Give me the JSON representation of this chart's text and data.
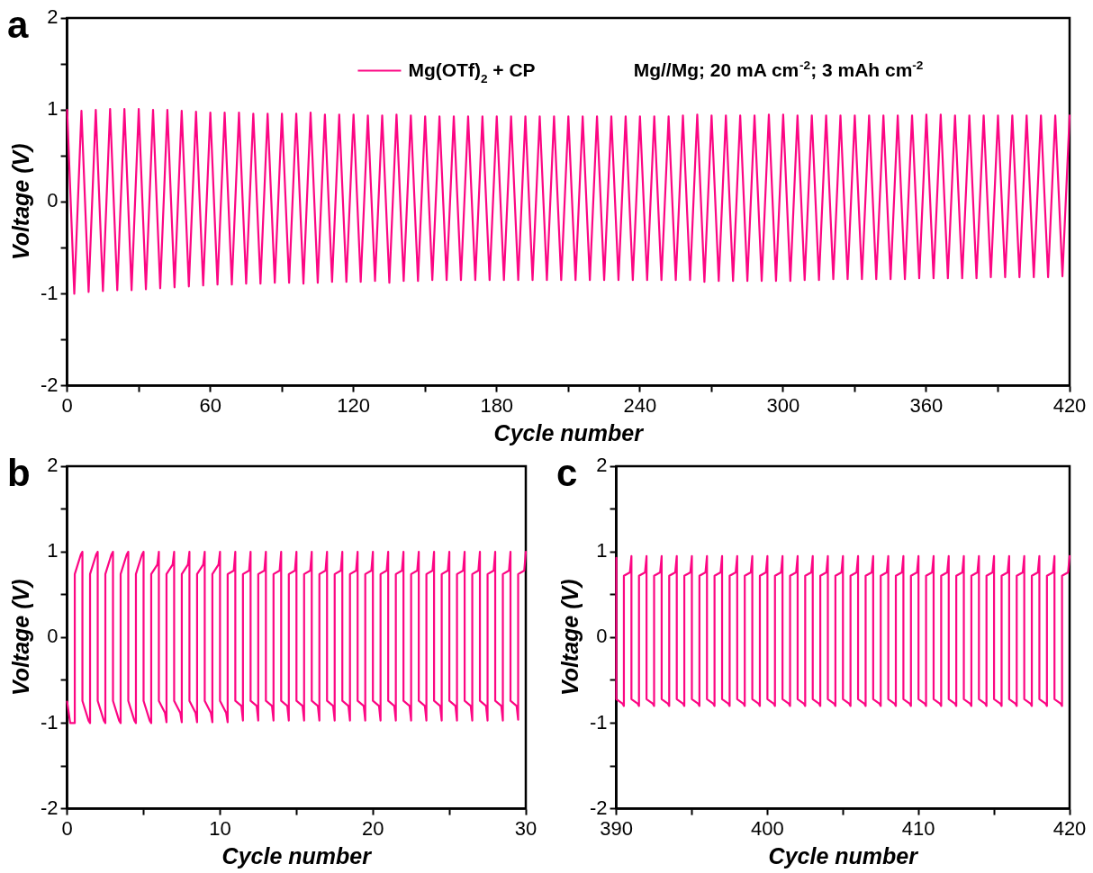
{
  "chart_data": [
    {
      "type": "line",
      "title": "a",
      "xlabel": "Cycle number",
      "ylabel": "Voltage (V)",
      "legend": "top",
      "annotations": [
        "Mg//Mg; 20 mA cm$^{-2}$; 3 mAh cm$^{-2}$"
      ],
      "xlim": [
        0,
        420
      ],
      "xticks": [
        0,
        {
          "value": 30,
          "label": null
        },
        60,
        {
          "value": 90,
          "label": null
        },
        120,
        {
          "value": 150,
          "label": null
        },
        180,
        {
          "value": 210,
          "label": null
        },
        240,
        {
          "value": 270,
          "label": null
        },
        300,
        {
          "value": 330,
          "label": null
        },
        360,
        {
          "value": 390,
          "label": null
        },
        420
      ],
      "ylim": [
        -2,
        2
      ],
      "yticks": [
        -2,
        {
          "value": -1.5,
          "label": null
        },
        -1,
        {
          "value": -0.5,
          "label": null
        },
        0,
        {
          "value": 0.5,
          "label": null
        },
        1,
        {
          "value": 1.5,
          "label": null
        },
        2
      ],
      "x": [
        0,
        3,
        6,
        9,
        12,
        15,
        18,
        21,
        24,
        27,
        30,
        33,
        36,
        39,
        42,
        45,
        48,
        51,
        54,
        57,
        60,
        63,
        66,
        69,
        72,
        75,
        78,
        81,
        84,
        87,
        90,
        93,
        96,
        99,
        102,
        105,
        108,
        111,
        114,
        117,
        120,
        123,
        126,
        129,
        132,
        135,
        138,
        141,
        144,
        147,
        150,
        153,
        156,
        159,
        162,
        165,
        168,
        171,
        174,
        177,
        180,
        183,
        186,
        189,
        192,
        195,
        198,
        201,
        204,
        207,
        210,
        213,
        216,
        219,
        222,
        225,
        228,
        231,
        234,
        237,
        240,
        243,
        246,
        249,
        252,
        255,
        258,
        261,
        264,
        267,
        270,
        273,
        276,
        279,
        282,
        285,
        288,
        291,
        294,
        297,
        300,
        303,
        306,
        309,
        312,
        315,
        318,
        321,
        324,
        327,
        330,
        333,
        336,
        339,
        342,
        345,
        348,
        351,
        354,
        357,
        360,
        363,
        366,
        369,
        372,
        375,
        378,
        381,
        384,
        387,
        390,
        393,
        396,
        399,
        402,
        405,
        408,
        411,
        414,
        417,
        420
      ],
      "series": [
        {
          "name": "Mg(OTf)$_{2}$ + CP",
          "color": "#fc0683",
          "values": [
            1.0,
            -1.0,
            0.99,
            -0.98,
            1.0,
            -0.97,
            1.01,
            -0.96,
            1.01,
            -0.96,
            1.01,
            -0.95,
            1.0,
            -0.94,
            1.0,
            -0.93,
            0.99,
            -0.92,
            0.98,
            -0.91,
            0.97,
            -0.9,
            0.97,
            -0.9,
            0.97,
            -0.89,
            0.96,
            -0.89,
            0.96,
            -0.88,
            0.96,
            -0.88,
            0.96,
            -0.89,
            0.97,
            -0.88,
            0.95,
            -0.87,
            0.95,
            -0.87,
            0.95,
            -0.87,
            0.94,
            -0.86,
            0.94,
            -0.88,
            0.95,
            -0.86,
            0.94,
            -0.86,
            0.93,
            -0.85,
            0.93,
            -0.85,
            0.93,
            -0.85,
            0.93,
            -0.85,
            0.93,
            -0.85,
            0.93,
            -0.85,
            0.93,
            -0.85,
            0.93,
            -0.85,
            0.93,
            -0.85,
            0.93,
            -0.85,
            0.93,
            -0.85,
            0.93,
            -0.85,
            0.93,
            -0.85,
            0.93,
            -0.85,
            0.93,
            -0.85,
            0.93,
            -0.85,
            0.93,
            -0.85,
            0.93,
            -0.85,
            0.94,
            -0.85,
            0.95,
            -0.87,
            0.94,
            -0.86,
            0.94,
            -0.86,
            0.94,
            -0.86,
            0.94,
            -0.86,
            0.95,
            -0.86,
            0.95,
            -0.86,
            0.94,
            -0.85,
            0.94,
            -0.85,
            0.94,
            -0.84,
            0.94,
            -0.84,
            0.94,
            -0.84,
            0.94,
            -0.84,
            0.94,
            -0.84,
            0.94,
            -0.84,
            0.94,
            -0.83,
            0.95,
            -0.83,
            0.95,
            -0.83,
            0.94,
            -0.83,
            0.94,
            -0.83,
            0.94,
            -0.82,
            0.94,
            -0.82,
            0.94,
            -0.82,
            0.94,
            -0.82,
            0.94,
            -0.82,
            0.94,
            -0.81,
            0.94
          ]
        }
      ]
    },
    {
      "type": "line",
      "title": "b",
      "xlabel": "Cycle number",
      "ylabel": "Voltage (V)",
      "xlim": [
        0,
        30
      ],
      "xticks": [
        0,
        {
          "value": 5,
          "label": null
        },
        10,
        {
          "value": 15,
          "label": null
        },
        20,
        {
          "value": 25,
          "label": null
        },
        30
      ],
      "ylim": [
        -2,
        2
      ],
      "yticks": [
        -2,
        {
          "value": -1.5,
          "label": null
        },
        -1,
        {
          "value": -0.5,
          "label": null
        },
        0,
        {
          "value": 0.5,
          "label": null
        },
        1,
        {
          "value": 1.5,
          "label": null
        },
        2
      ],
      "x": [
        0,
        0.2,
        0.5,
        0.5,
        0.9,
        1,
        1,
        1.4,
        1.5,
        1.5,
        1.9,
        2,
        2,
        2.4,
        2.5,
        2.5,
        2.9,
        3,
        3,
        3.4,
        3.5,
        3.5,
        3.9,
        4,
        4,
        4.4,
        4.5,
        4.5,
        4.9,
        5,
        5,
        5.4,
        5.5,
        5.5,
        5.9,
        6,
        6,
        6.4,
        6.5,
        6.5,
        6.9,
        7,
        7,
        7.4,
        7.5,
        7.5,
        7.9,
        8,
        8,
        8.4,
        8.5,
        8.5,
        8.9,
        9,
        9,
        9.4,
        9.5,
        9.5,
        9.9,
        10,
        10,
        10.4,
        10.5,
        10.5,
        10.9,
        11,
        11,
        11.4,
        11.5,
        11.5,
        11.9,
        12,
        12,
        12.4,
        12.5,
        12.5,
        12.9,
        13,
        13,
        13.4,
        13.5,
        13.5,
        13.9,
        14,
        14,
        14.4,
        14.5,
        14.5,
        14.9,
        15,
        15,
        15.4,
        15.5,
        15.5,
        15.9,
        16,
        16,
        16.4,
        16.5,
        16.5,
        16.9,
        17,
        17,
        17.4,
        17.5,
        17.5,
        17.9,
        18,
        18,
        18.4,
        18.5,
        18.5,
        18.9,
        19,
        19,
        19.4,
        19.5,
        19.5,
        19.9,
        20,
        20,
        20.4,
        20.5,
        20.5,
        20.9,
        21,
        21,
        21.4,
        21.5,
        21.5,
        21.9,
        22,
        22,
        22.4,
        22.5,
        22.5,
        22.9,
        23,
        23,
        23.4,
        23.5,
        23.5,
        23.9,
        24,
        24,
        24.4,
        24.5,
        24.5,
        24.9,
        25,
        25,
        25.4,
        25.5,
        25.5,
        25.9,
        26,
        26,
        26.4,
        26.5,
        26.5,
        26.9,
        27,
        27,
        27.4,
        27.5,
        27.5,
        27.9,
        28,
        28,
        28.4,
        28.5,
        28.5,
        28.9,
        29,
        29,
        29.4,
        29.5,
        29.5,
        29.9,
        30
      ],
      "series": [
        {
          "color": "#fc0683",
          "values": [
            -0.75,
            -1.0,
            -1.0,
            0.74,
            0.97,
            1.0,
            -0.74,
            -0.97,
            -1.0,
            0.74,
            0.97,
            1.0,
            -0.74,
            -0.97,
            -1.0,
            0.74,
            0.97,
            1.0,
            -0.74,
            -0.97,
            -1.0,
            0.74,
            0.97,
            1.0,
            -0.74,
            -0.97,
            -1.0,
            0.74,
            0.97,
            1.0,
            -0.74,
            -0.97,
            -1.0,
            0.74,
            0.85,
            1.0,
            -0.74,
            -0.88,
            -0.99,
            0.74,
            0.85,
            1.0,
            -0.74,
            -0.88,
            -0.99,
            0.74,
            0.85,
            1.0,
            -0.74,
            -0.88,
            -0.99,
            0.74,
            0.85,
            1.0,
            -0.74,
            -0.88,
            -0.99,
            0.74,
            0.85,
            1.0,
            -0.74,
            -0.88,
            -0.99,
            0.74,
            0.78,
            1.0,
            -0.74,
            -0.8,
            -0.97,
            0.74,
            0.78,
            1.0,
            -0.74,
            -0.8,
            -0.97,
            0.74,
            0.78,
            1.0,
            -0.74,
            -0.8,
            -0.97,
            0.74,
            0.78,
            1.0,
            -0.74,
            -0.8,
            -0.97,
            0.74,
            0.78,
            1.0,
            -0.74,
            -0.8,
            -0.97,
            0.74,
            0.78,
            1.0,
            -0.74,
            -0.8,
            -0.97,
            0.74,
            0.78,
            1.0,
            -0.74,
            -0.8,
            -0.97,
            0.74,
            0.78,
            1.0,
            -0.74,
            -0.8,
            -0.97,
            0.74,
            0.78,
            1.0,
            -0.74,
            -0.8,
            -0.97,
            0.74,
            0.78,
            1.0,
            -0.74,
            -0.8,
            -0.97,
            0.74,
            0.78,
            1.0,
            -0.74,
            -0.8,
            -0.97,
            0.74,
            0.78,
            1.0,
            -0.74,
            -0.8,
            -0.97,
            0.74,
            0.78,
            1.0,
            -0.74,
            -0.8,
            -0.97,
            0.74,
            0.78,
            1.0,
            -0.74,
            -0.8,
            -0.97,
            0.74,
            0.78,
            1.0,
            -0.74,
            -0.8,
            -0.97,
            0.74,
            0.78,
            1.0,
            -0.74,
            -0.8,
            -0.97,
            0.74,
            0.78,
            1.0,
            -0.74,
            -0.8,
            -0.97,
            0.74,
            0.78,
            1.0,
            -0.74,
            -0.8,
            -0.97,
            0.74,
            0.78,
            1.0,
            -0.74,
            -0.8,
            -0.96,
            0.74,
            0.78,
            1.0
          ]
        }
      ]
    },
    {
      "type": "line",
      "title": "c",
      "xlabel": "Cycle number",
      "ylabel": "Voltage (V)",
      "xlim": [
        390,
        420
      ],
      "xticks": [
        390,
        {
          "value": 395,
          "label": null
        },
        400,
        {
          "value": 405,
          "label": null
        },
        410,
        {
          "value": 415,
          "label": null
        },
        420
      ],
      "ylim": [
        -2,
        2
      ],
      "yticks": [
        -2,
        {
          "value": -1.5,
          "label": null
        },
        -1,
        {
          "value": -0.5,
          "label": null
        },
        0,
        {
          "value": 0.5,
          "label": null
        },
        1,
        {
          "value": 1.5,
          "label": null
        },
        2
      ],
      "x": [
        390,
        390,
        390.4,
        390.5,
        390.5,
        390.9,
        391,
        391,
        391.4,
        391.5,
        391.5,
        391.9,
        392,
        392,
        392.4,
        392.5,
        392.5,
        392.9,
        393,
        393,
        393.4,
        393.5,
        393.5,
        393.9,
        394,
        394,
        394.4,
        394.5,
        394.5,
        394.9,
        395,
        395,
        395.4,
        395.5,
        395.5,
        395.9,
        396,
        396,
        396.4,
        396.5,
        396.5,
        396.9,
        397,
        397,
        397.4,
        397.5,
        397.5,
        397.9,
        398,
        398,
        398.4,
        398.5,
        398.5,
        398.9,
        399,
        399,
        399.4,
        399.5,
        399.5,
        399.9,
        400,
        400,
        400.4,
        400.5,
        400.5,
        400.9,
        401,
        401,
        401.4,
        401.5,
        401.5,
        401.9,
        402,
        402,
        402.4,
        402.5,
        402.5,
        402.9,
        403,
        403,
        403.4,
        403.5,
        403.5,
        403.9,
        404,
        404,
        404.4,
        404.5,
        404.5,
        404.9,
        405,
        405,
        405.4,
        405.5,
        405.5,
        405.9,
        406,
        406,
        406.4,
        406.5,
        406.5,
        406.9,
        407,
        407,
        407.4,
        407.5,
        407.5,
        407.9,
        408,
        408,
        408.4,
        408.5,
        408.5,
        408.9,
        409,
        409,
        409.4,
        409.5,
        409.5,
        409.9,
        410,
        410,
        410.4,
        410.5,
        410.5,
        410.9,
        411,
        411,
        411.4,
        411.5,
        411.5,
        411.9,
        412,
        412,
        412.4,
        412.5,
        412.5,
        412.9,
        413,
        413,
        413.4,
        413.5,
        413.5,
        413.9,
        414,
        414,
        414.4,
        414.5,
        414.5,
        414.9,
        415,
        415,
        415.4,
        415.5,
        415.5,
        415.9,
        416,
        416,
        416.4,
        416.5,
        416.5,
        416.9,
        417,
        417,
        417.4,
        417.5,
        417.5,
        417.9,
        418,
        418,
        418.4,
        418.5,
        418.5,
        418.9,
        419,
        419,
        419.4,
        419.5,
        419.5,
        419.9,
        420
      ],
      "series": [
        {
          "color": "#fc0683",
          "values": [
            0.93,
            -0.72,
            -0.77,
            -0.8,
            0.72,
            0.76,
            0.95,
            -0.72,
            -0.77,
            -0.8,
            0.72,
            0.76,
            0.95,
            -0.72,
            -0.77,
            -0.8,
            0.72,
            0.76,
            0.95,
            -0.72,
            -0.77,
            -0.8,
            0.72,
            0.76,
            0.95,
            -0.72,
            -0.77,
            -0.8,
            0.72,
            0.76,
            0.95,
            -0.72,
            -0.77,
            -0.8,
            0.72,
            0.76,
            0.95,
            -0.72,
            -0.77,
            -0.8,
            0.72,
            0.76,
            0.95,
            -0.72,
            -0.77,
            -0.8,
            0.72,
            0.76,
            0.95,
            -0.72,
            -0.77,
            -0.8,
            0.72,
            0.76,
            0.95,
            -0.72,
            -0.77,
            -0.8,
            0.72,
            0.76,
            0.95,
            -0.72,
            -0.77,
            -0.8,
            0.72,
            0.76,
            0.95,
            -0.72,
            -0.77,
            -0.8,
            0.72,
            0.76,
            0.95,
            -0.72,
            -0.77,
            -0.8,
            0.72,
            0.76,
            0.95,
            -0.72,
            -0.77,
            -0.8,
            0.72,
            0.76,
            0.95,
            -0.72,
            -0.77,
            -0.8,
            0.72,
            0.76,
            0.95,
            -0.72,
            -0.77,
            -0.8,
            0.72,
            0.76,
            0.95,
            -0.72,
            -0.77,
            -0.8,
            0.72,
            0.76,
            0.95,
            -0.72,
            -0.77,
            -0.8,
            0.72,
            0.76,
            0.95,
            -0.72,
            -0.77,
            -0.8,
            0.72,
            0.76,
            0.95,
            -0.72,
            -0.77,
            -0.8,
            0.72,
            0.76,
            0.95,
            -0.72,
            -0.77,
            -0.8,
            0.72,
            0.76,
            0.95,
            -0.72,
            -0.77,
            -0.8,
            0.72,
            0.76,
            0.95,
            -0.72,
            -0.77,
            -0.8,
            0.72,
            0.76,
            0.95,
            -0.72,
            -0.77,
            -0.8,
            0.72,
            0.76,
            0.95,
            -0.72,
            -0.77,
            -0.8,
            0.72,
            0.76,
            0.95,
            -0.72,
            -0.77,
            -0.8,
            0.72,
            0.76,
            0.95,
            -0.72,
            -0.77,
            -0.8,
            0.72,
            0.76,
            0.95,
            -0.72,
            -0.77,
            -0.8,
            0.72,
            0.76,
            0.95,
            -0.72,
            -0.77,
            -0.8,
            0.72,
            0.76,
            0.95,
            -0.72,
            -0.77,
            -0.8,
            0.72,
            0.76,
            0.95
          ]
        }
      ]
    }
  ]
}
